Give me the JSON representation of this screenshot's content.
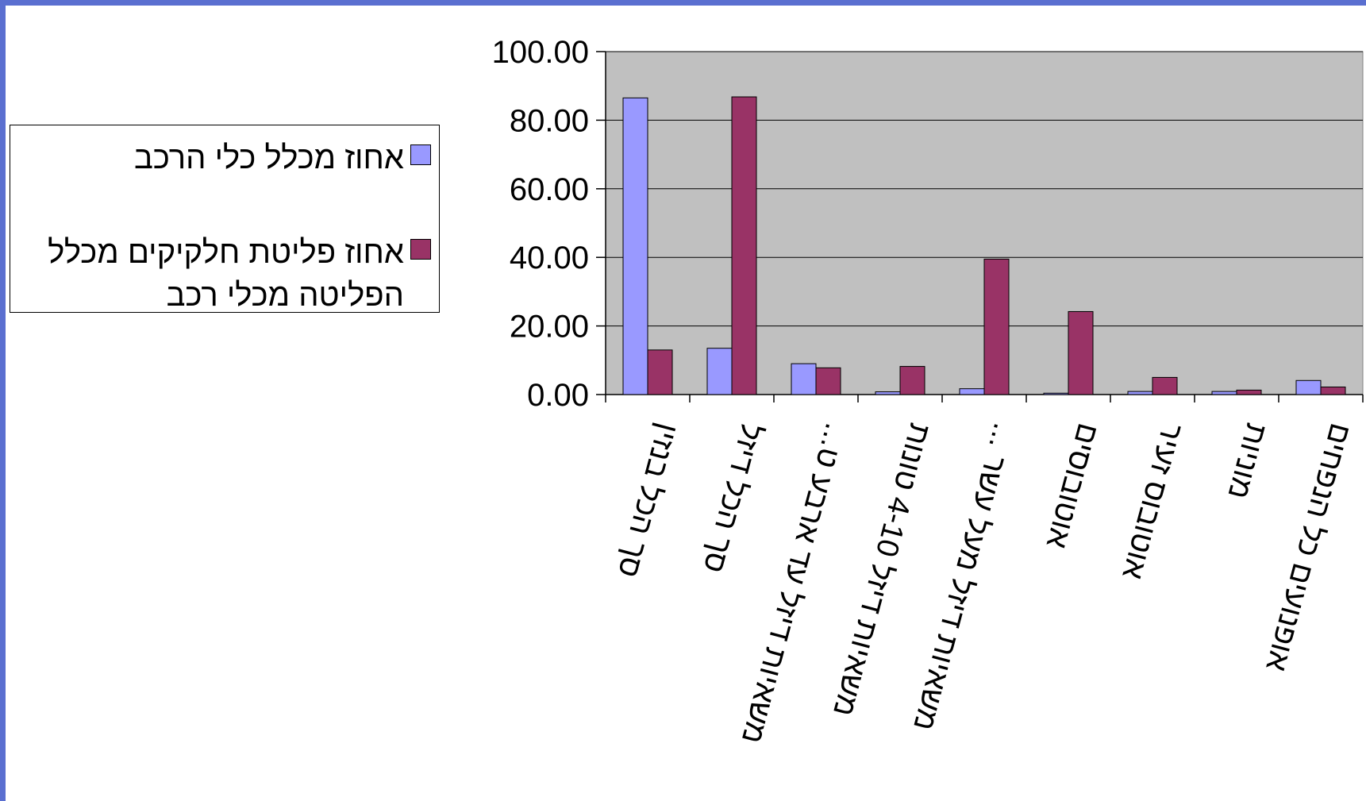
{
  "colors": {
    "frame": "#5a6fd0",
    "plot_bg": "#c0c0c0",
    "series1": "#9999ff",
    "series2": "#993366"
  },
  "legend": {
    "items": [
      {
        "label": "אחוז מכלל כלי הרכב"
      },
      {
        "label": "אחוז פליטת חלקיקים מכלל הפליטה מכלי רכב"
      }
    ]
  },
  "chart_data": {
    "type": "bar",
    "categories": [
      "סך הכל בנזין",
      "סך הכל דיזל",
      "משאיות דיזל עד ארבע ט...",
      "משאיות דיזל 4-10 טונות",
      "משאיות דיזל מעל עשר ...",
      "אוטובוסים",
      "אוטובוס זעיר",
      "מוניות",
      "אופנועים כל הנפחים"
    ],
    "series": [
      {
        "name": "אחוז מכלל כלי הרכב",
        "values": [
          86.5,
          13.5,
          9.0,
          0.8,
          1.7,
          0.4,
          0.9,
          0.9,
          4.1
        ]
      },
      {
        "name": "אחוז פליטת חלקיקים מכלל הפליטה מכלי רכב",
        "values": [
          13.0,
          86.8,
          7.8,
          8.2,
          39.5,
          24.2,
          5.0,
          1.3,
          2.2
        ]
      }
    ],
    "ylim": [
      0,
      100
    ],
    "yticks": [
      "0.00",
      "20.00",
      "40.00",
      "60.00",
      "80.00",
      "100.00"
    ],
    "grid": true,
    "legend_position": "left"
  }
}
